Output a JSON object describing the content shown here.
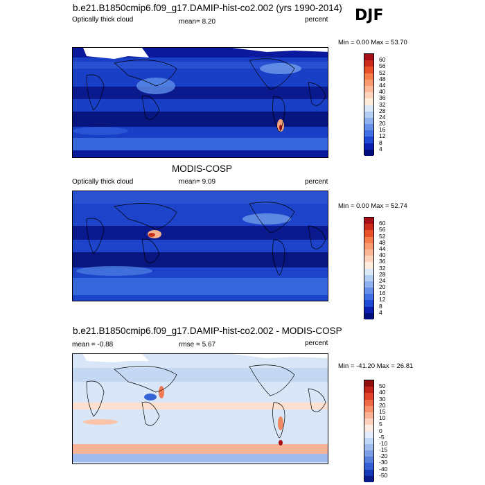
{
  "season": "DJF",
  "panels": [
    {
      "title": "b.e21.B1850cmip6.f09_g17.DAMIP-hist-co2.002 (yrs 1990-2014)",
      "left_label": "Optically thick cloud",
      "center_label": "mean=  8.20",
      "unit": "percent",
      "minmax": "Min =   0.00 Max =  53.70",
      "colorbar_labels": [
        "60",
        "56",
        "52",
        "48",
        "44",
        "40",
        "36",
        "32",
        "28",
        "24",
        "20",
        "16",
        "12",
        "8",
        "4"
      ]
    },
    {
      "title": "MODIS-COSP",
      "left_label": "Optically thick cloud",
      "center_label": "mean=  9.09",
      "unit": "percent",
      "minmax": "Min =   0.00 Max =  52.74",
      "colorbar_labels": [
        "60",
        "56",
        "52",
        "48",
        "44",
        "40",
        "36",
        "32",
        "28",
        "24",
        "20",
        "16",
        "12",
        "8",
        "4"
      ]
    },
    {
      "title": "b.e21.B1850cmip6.f09_g17.DAMIP-hist-co2.002 - MODIS-COSP",
      "left_label": "mean =  -0.88",
      "center_label": "rmse =   5.67",
      "unit": "percent",
      "minmax": "Min = -41.20 Max =  26.81",
      "colorbar_labels": [
        "50",
        "40",
        "30",
        "20",
        "15",
        "10",
        "5",
        "0",
        "-5",
        "-10",
        "-15",
        "-20",
        "-30",
        "-40",
        "-50"
      ]
    }
  ],
  "colors": {
    "abs_scale": [
      "#a50f15",
      "#cb2a1c",
      "#e8502b",
      "#f57c4d",
      "#f89b72",
      "#fbb898",
      "#fcd3bb",
      "#fdebdc",
      "#dbe8f8",
      "#b4cdf3",
      "#8fb1ee",
      "#6890e8",
      "#4370e2",
      "#2049d6",
      "#0a1fb0",
      "#000d7a"
    ],
    "diff_scale": [
      "#900f0f",
      "#c0231a",
      "#e0422b",
      "#ef6a47",
      "#f6906c",
      "#fab295",
      "#fcd2bf",
      "#feece2",
      "#e2ecfb",
      "#c2d6f5",
      "#9ebcee",
      "#7c9fe6",
      "#5a80de",
      "#3560d4",
      "#1639b8",
      "#0b1b88"
    ]
  }
}
